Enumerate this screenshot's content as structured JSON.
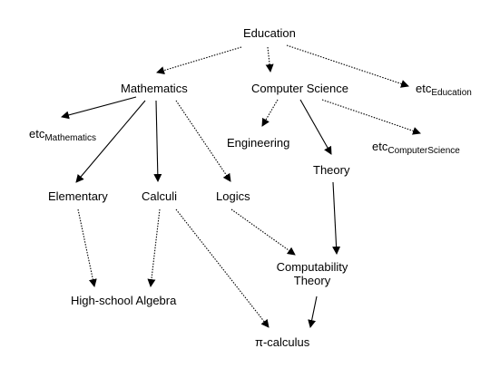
{
  "nodes": {
    "education": "Education",
    "mathematics": "Mathematics",
    "computer_science": "Computer Science",
    "etc_education": {
      "base": "etc",
      "sub": "Education"
    },
    "etc_mathematics": {
      "base": "etc",
      "sub": "Mathematics"
    },
    "engineering": "Engineering",
    "etc_computer_science": {
      "base": "etc",
      "sub": "ComputerScience"
    },
    "theory": "Theory",
    "elementary": "Elementary",
    "calculi": "Calculi",
    "logics": "Logics",
    "computability_theory_line1": "Computability",
    "computability_theory_line2": "Theory",
    "high_school_algebra": "High-school Algebra",
    "pi_calculus": "π-calculus"
  },
  "edges": [
    {
      "from": "education",
      "to": "mathematics",
      "style": "dotted"
    },
    {
      "from": "education",
      "to": "computer_science",
      "style": "dotted"
    },
    {
      "from": "education",
      "to": "etc_education",
      "style": "dotted"
    },
    {
      "from": "mathematics",
      "to": "etc_mathematics",
      "style": "solid"
    },
    {
      "from": "mathematics",
      "to": "elementary",
      "style": "solid"
    },
    {
      "from": "mathematics",
      "to": "calculi",
      "style": "solid"
    },
    {
      "from": "mathematics",
      "to": "logics",
      "style": "dotted"
    },
    {
      "from": "computer_science",
      "to": "engineering",
      "style": "dotted"
    },
    {
      "from": "computer_science",
      "to": "theory",
      "style": "solid"
    },
    {
      "from": "computer_science",
      "to": "etc_computer_science",
      "style": "dotted"
    },
    {
      "from": "theory",
      "to": "computability_theory",
      "style": "solid"
    },
    {
      "from": "elementary",
      "to": "high_school_algebra",
      "style": "dotted"
    },
    {
      "from": "calculi",
      "to": "high_school_algebra",
      "style": "dotted"
    },
    {
      "from": "calculi",
      "to": "pi_calculus",
      "style": "dotted"
    },
    {
      "from": "logics",
      "to": "computability_theory",
      "style": "dotted"
    },
    {
      "from": "computability_theory",
      "to": "pi_calculus",
      "style": "solid"
    }
  ]
}
